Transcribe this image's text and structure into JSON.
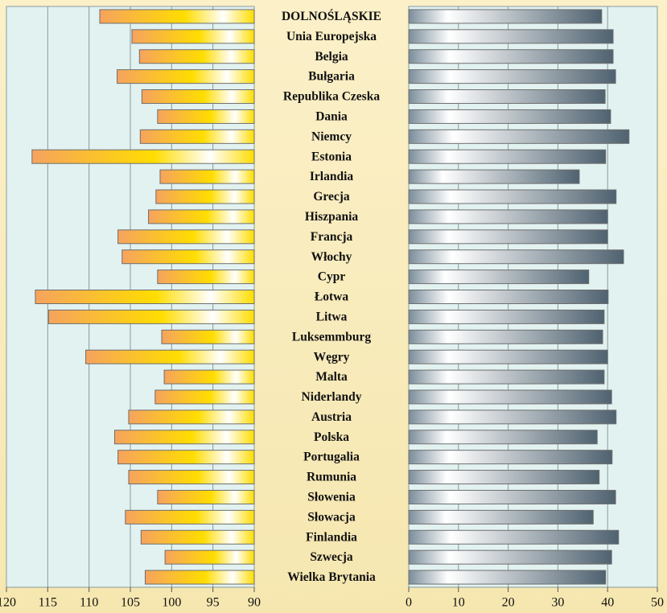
{
  "chart_data": [
    {
      "type": "bar",
      "orientation": "horizontal",
      "color": "#ffdd00",
      "grid": true,
      "categories": [
        "DOLNOŚLĄSKIE",
        "Unia Europejska",
        "Belgia",
        "Bułgaria",
        "Republika Czeska",
        "Dania",
        "Niemcy",
        "Estonia",
        "Irlandia",
        "Grecja",
        "Hiszpania",
        "Francja",
        "Włochy",
        "Cypr",
        "Łotwa",
        "Litwa",
        "Luksemmburg",
        "Węgry",
        "Malta",
        "Niderlandy",
        "Austria",
        "Polska",
        "Portugalia",
        "Rumunia",
        "Słowenia",
        "Słowacja",
        "Finlandia",
        "Szwecja",
        "Wielka Brytania"
      ],
      "values": [
        108.7,
        104.8,
        103.9,
        106.6,
        103.6,
        101.7,
        103.8,
        116.9,
        101.4,
        101.9,
        102.8,
        106.5,
        106.0,
        101.7,
        116.5,
        114.9,
        101.2,
        110.4,
        100.9,
        102.0,
        105.2,
        106.9,
        106.5,
        105.2,
        101.7,
        105.6,
        103.7,
        100.8,
        103.2
      ],
      "xlim": [
        120,
        90
      ],
      "xticks": [
        120,
        115,
        110,
        105,
        100,
        95,
        90
      ]
    },
    {
      "type": "bar",
      "orientation": "horizontal",
      "color": "#7a8d9a",
      "grid": true,
      "values": [
        38.8,
        41.1,
        41.1,
        41.6,
        39.5,
        40.6,
        44.3,
        39.6,
        34.3,
        41.7,
        40.0,
        40.0,
        43.2,
        36.2,
        40.1,
        39.3,
        39.0,
        40.0,
        39.3,
        40.8,
        41.7,
        37.9,
        40.9,
        38.3,
        41.6,
        37.1,
        42.2,
        40.8,
        39.6
      ],
      "xlim": [
        0,
        50
      ],
      "xticks": [
        0,
        10,
        20,
        30,
        40,
        50
      ]
    }
  ]
}
